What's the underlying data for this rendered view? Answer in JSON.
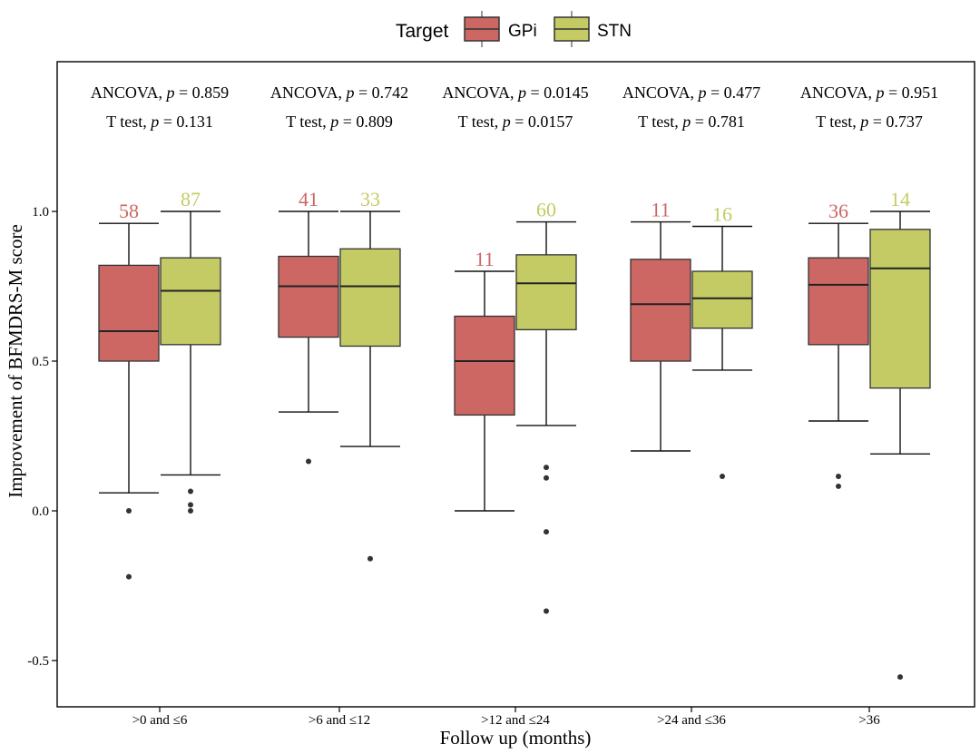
{
  "chart_data": {
    "type": "box",
    "xlabel": "Follow up (months)",
    "ylabel": "Improvement of BFMDRS-M score",
    "ylim": [
      -0.65,
      1.5
    ],
    "yticks": [
      -0.5,
      0.0,
      0.5,
      1.0
    ],
    "ytick_labels": [
      "-0.5",
      "0.0",
      "0.5",
      "1.0"
    ],
    "grid": false,
    "legend": {
      "title": "Target",
      "placement": "top",
      "entries": [
        {
          "name": "GPi",
          "color": "#cd6764"
        },
        {
          "name": "STN",
          "color": "#c4cb64"
        }
      ]
    },
    "colors": {
      "GPi": "#cd6764",
      "STN": "#c4cb64",
      "GPi_label": "#cd6764",
      "STN_label": "#c4cb64"
    },
    "categories": [
      ">0 and ≤6",
      ">6 and ≤12",
      ">12 and ≤24",
      ">24 and ≤36",
      ">36"
    ],
    "annotations": [
      {
        "ancova_prefix": "ANCOVA, ",
        "ancova_p": "p",
        "ancova_value": " = 0.859",
        "ttest_prefix": "T test, ",
        "ttest_p": "p",
        "ttest_value": " = 0.131"
      },
      {
        "ancova_prefix": "ANCOVA, ",
        "ancova_p": "p",
        "ancova_value": " = 0.742",
        "ttest_prefix": "T test, ",
        "ttest_p": "p",
        "ttest_value": " = 0.809"
      },
      {
        "ancova_prefix": "ANCOVA, ",
        "ancova_p": "p",
        "ancova_value": " = 0.0145",
        "ttest_prefix": "T test, ",
        "ttest_p": "p",
        "ttest_value": " = 0.0157"
      },
      {
        "ancova_prefix": "ANCOVA, ",
        "ancova_p": "p",
        "ancova_value": " = 0.477",
        "ttest_prefix": "T test, ",
        "ttest_p": "p",
        "ttest_value": " = 0.781"
      },
      {
        "ancova_prefix": "ANCOVA, ",
        "ancova_p": "p",
        "ancova_value": " = 0.951",
        "ttest_prefix": "T test, ",
        "ttest_p": "p",
        "ttest_value": " = 0.737"
      }
    ],
    "series": [
      {
        "name": "GPi",
        "boxes": [
          {
            "n": "58",
            "q1": 0.5,
            "median": 0.6,
            "q3": 0.82,
            "whisker_low": 0.06,
            "whisker_high": 0.96,
            "outliers": [
              0.0,
              -0.22
            ]
          },
          {
            "n": "41",
            "q1": 0.58,
            "median": 0.75,
            "q3": 0.85,
            "whisker_low": 0.33,
            "whisker_high": 1.0,
            "outliers": [
              0.165
            ]
          },
          {
            "n": "11",
            "q1": 0.32,
            "median": 0.5,
            "q3": 0.65,
            "whisker_low": 0.0,
            "whisker_high": 0.8,
            "outliers": []
          },
          {
            "n": "11",
            "q1": 0.5,
            "median": 0.69,
            "q3": 0.84,
            "whisker_low": 0.2,
            "whisker_high": 0.965,
            "outliers": []
          },
          {
            "n": "36",
            "q1": 0.555,
            "median": 0.755,
            "q3": 0.845,
            "whisker_low": 0.3,
            "whisker_high": 0.96,
            "outliers": [
              0.115,
              0.082
            ]
          }
        ]
      },
      {
        "name": "STN",
        "boxes": [
          {
            "n": "87",
            "q1": 0.555,
            "median": 0.735,
            "q3": 0.845,
            "whisker_low": 0.12,
            "whisker_high": 1.0,
            "outliers": [
              0.065,
              0.02,
              0.0
            ]
          },
          {
            "n": "33",
            "q1": 0.55,
            "median": 0.75,
            "q3": 0.875,
            "whisker_low": 0.215,
            "whisker_high": 1.0,
            "outliers": [
              -0.16
            ]
          },
          {
            "n": "60",
            "q1": 0.605,
            "median": 0.76,
            "q3": 0.855,
            "whisker_low": 0.285,
            "whisker_high": 0.965,
            "outliers": [
              0.145,
              0.11,
              -0.07,
              -0.335
            ]
          },
          {
            "n": "16",
            "q1": 0.61,
            "median": 0.71,
            "q3": 0.8,
            "whisker_low": 0.47,
            "whisker_high": 0.95,
            "outliers": [
              0.115
            ]
          },
          {
            "n": "14",
            "q1": 0.41,
            "median": 0.81,
            "q3": 0.94,
            "whisker_low": 0.19,
            "whisker_high": 1.0,
            "outliers": [
              -0.555
            ]
          }
        ]
      }
    ]
  }
}
